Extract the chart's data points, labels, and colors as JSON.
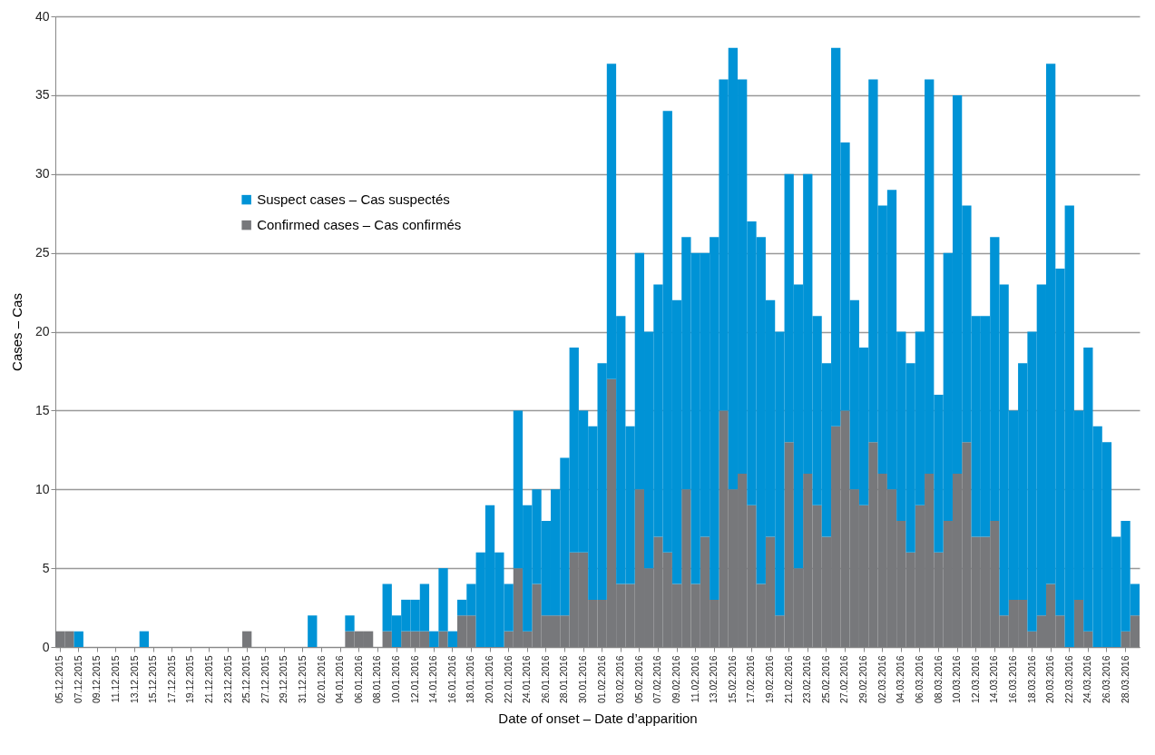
{
  "chart_data": {
    "type": "bar",
    "xlabel": "Date of onset – Date d’apparition",
    "ylabel": "Cases – Cas",
    "categories": [
      "05.12.2015",
      null,
      "07.12.2015",
      null,
      "09.12.2015",
      null,
      "11.12.2015",
      null,
      "13.12.2015",
      null,
      "15.12.2015",
      null,
      "17.12.2015",
      null,
      "19.12.2015",
      null,
      "21.12.2015",
      null,
      "23.12.2015",
      null,
      "25.12.2015",
      null,
      "27.12.2015",
      null,
      "29.12.2015",
      null,
      "31.12.2015",
      null,
      "02.01.2016",
      null,
      "04.01.2016",
      null,
      "06.01.2016",
      null,
      "08.01.2016",
      null,
      "10.01.2016",
      null,
      "12.01.2016",
      null,
      "14.01.2016",
      null,
      "16.01.2016",
      null,
      "18.01.2016",
      null,
      "20.01.2016",
      null,
      "22.01.2016",
      null,
      "24.01.2016",
      null,
      "26.01.2016",
      null,
      "28.01.2016",
      null,
      "30.01.2016",
      null,
      "01.02.2016",
      null,
      "03.02.2016",
      null,
      "05.02.2016",
      null,
      "07.02.2016",
      null,
      "09.02.2016",
      null,
      "11.02.2016",
      null,
      "13.02.2016",
      null,
      "15.02.2016",
      null,
      "17.02.2016",
      null,
      "19.02.2016",
      null,
      "21.02.2016",
      null,
      "23.02.2016",
      null,
      "25.02.2016",
      null,
      "27.02.2016",
      null,
      "29.02.2016",
      null,
      "02.03.2016",
      null,
      "04.03.2016",
      null,
      "06.03.2016",
      null,
      "08.03.2016",
      null,
      "10.03.2016",
      null,
      "12.03.2016",
      null,
      "14.03.2016",
      null,
      "16.03.2016",
      null,
      "18.03.2016",
      null,
      "20.03.2016",
      null,
      "22.03.2016",
      null,
      "24.03.2016",
      null,
      "26.03.2016",
      null,
      "28.03.2016",
      null
    ],
    "series": [
      {
        "name": "Confirmed cases – Cas confirmés",
        "color": "#77787b",
        "values": [
          1,
          1,
          0,
          0,
          0,
          0,
          0,
          0,
          0,
          0,
          0,
          0,
          0,
          0,
          0,
          0,
          0,
          0,
          0,
          0,
          1,
          0,
          0,
          0,
          0,
          0,
          0,
          0,
          0,
          0,
          0,
          1,
          1,
          1,
          0,
          1,
          0,
          1,
          1,
          1,
          0,
          1,
          0,
          2,
          2,
          0,
          0,
          0,
          1,
          5,
          1,
          4,
          2,
          2,
          2,
          6,
          6,
          3,
          3,
          17,
          4,
          4,
          10,
          5,
          7,
          6,
          4,
          10,
          4,
          7,
          3,
          15,
          10,
          11,
          9,
          4,
          7,
          2,
          13,
          5,
          11,
          9,
          7,
          14,
          15,
          10,
          9,
          13,
          11,
          10,
          8,
          6,
          9,
          11,
          6,
          8,
          11,
          13,
          7,
          7,
          8,
          2,
          3,
          3,
          1,
          2,
          4,
          2,
          0,
          3,
          1,
          0,
          0,
          0,
          1,
          2
        ]
      },
      {
        "name": "Suspect cases – Cas suspectés",
        "color": "#0093d6",
        "values": [
          0,
          0,
          1,
          0,
          0,
          0,
          0,
          0,
          0,
          1,
          0,
          0,
          0,
          0,
          0,
          0,
          0,
          0,
          0,
          0,
          0,
          0,
          0,
          0,
          0,
          0,
          0,
          2,
          0,
          0,
          0,
          1,
          0,
          0,
          0,
          3,
          2,
          2,
          2,
          3,
          1,
          4,
          1,
          1,
          2,
          6,
          9,
          6,
          3,
          10,
          8,
          6,
          6,
          8,
          10,
          13,
          9,
          11,
          15,
          20,
          17,
          10,
          15,
          15,
          16,
          28,
          18,
          16,
          21,
          18,
          23,
          21,
          28,
          25,
          18,
          22,
          15,
          18,
          17,
          18,
          19,
          12,
          11,
          24,
          17,
          12,
          10,
          23,
          17,
          19,
          12,
          12,
          11,
          25,
          10,
          17,
          24,
          15,
          14,
          14,
          18,
          21,
          12,
          15,
          19,
          21,
          33,
          22,
          28,
          12,
          18,
          14,
          13,
          7,
          7,
          2
        ]
      }
    ],
    "stacked": true,
    "ylim": [
      0,
      40
    ],
    "yticks": [
      0,
      5,
      10,
      15,
      20,
      25,
      30,
      35,
      40
    ],
    "grid": "y",
    "legend": "top left"
  }
}
